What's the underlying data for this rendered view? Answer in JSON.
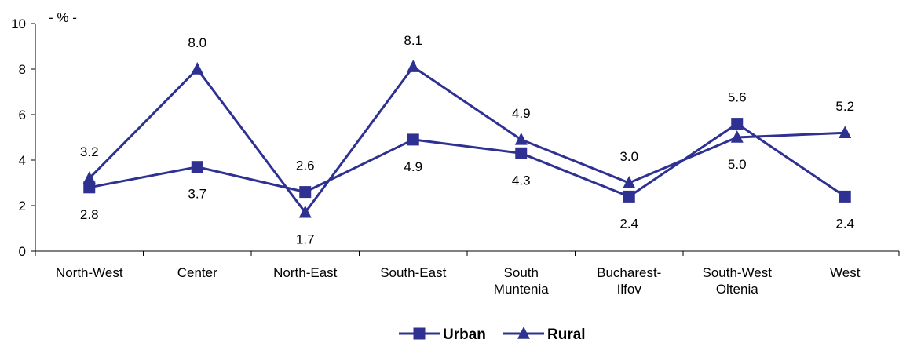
{
  "chart_data": {
    "type": "line",
    "unit_label": "- % -",
    "categories": [
      [
        "North-West"
      ],
      [
        "Center"
      ],
      [
        "North-East"
      ],
      [
        "South-East"
      ],
      [
        "South",
        "Muntenia"
      ],
      [
        "Bucharest-",
        "Ilfov"
      ],
      [
        "South-West",
        "Oltenia"
      ],
      [
        "West"
      ]
    ],
    "ylim": [
      0,
      10
    ],
    "yticks": [
      0,
      2,
      4,
      6,
      8,
      10
    ],
    "grid": false,
    "legend_position": "bottom-center",
    "series": [
      {
        "name": "Urban",
        "marker": "square",
        "color": "#2e3192",
        "values": [
          2.8,
          3.7,
          2.6,
          4.9,
          4.3,
          2.4,
          5.6,
          2.4
        ],
        "labels": [
          "2.8",
          "3.7",
          "2.6",
          "4.9",
          "4.3",
          "2.4",
          "5.6",
          "2.4"
        ]
      },
      {
        "name": "Rural",
        "marker": "triangle",
        "color": "#2e3192",
        "values": [
          3.2,
          8.0,
          1.7,
          8.1,
          4.9,
          3.0,
          5.0,
          5.2
        ],
        "labels": [
          "3.2",
          "8.0",
          "1.7",
          "8.1",
          "4.9",
          "3.0",
          "5.0",
          "5.2"
        ]
      }
    ]
  }
}
